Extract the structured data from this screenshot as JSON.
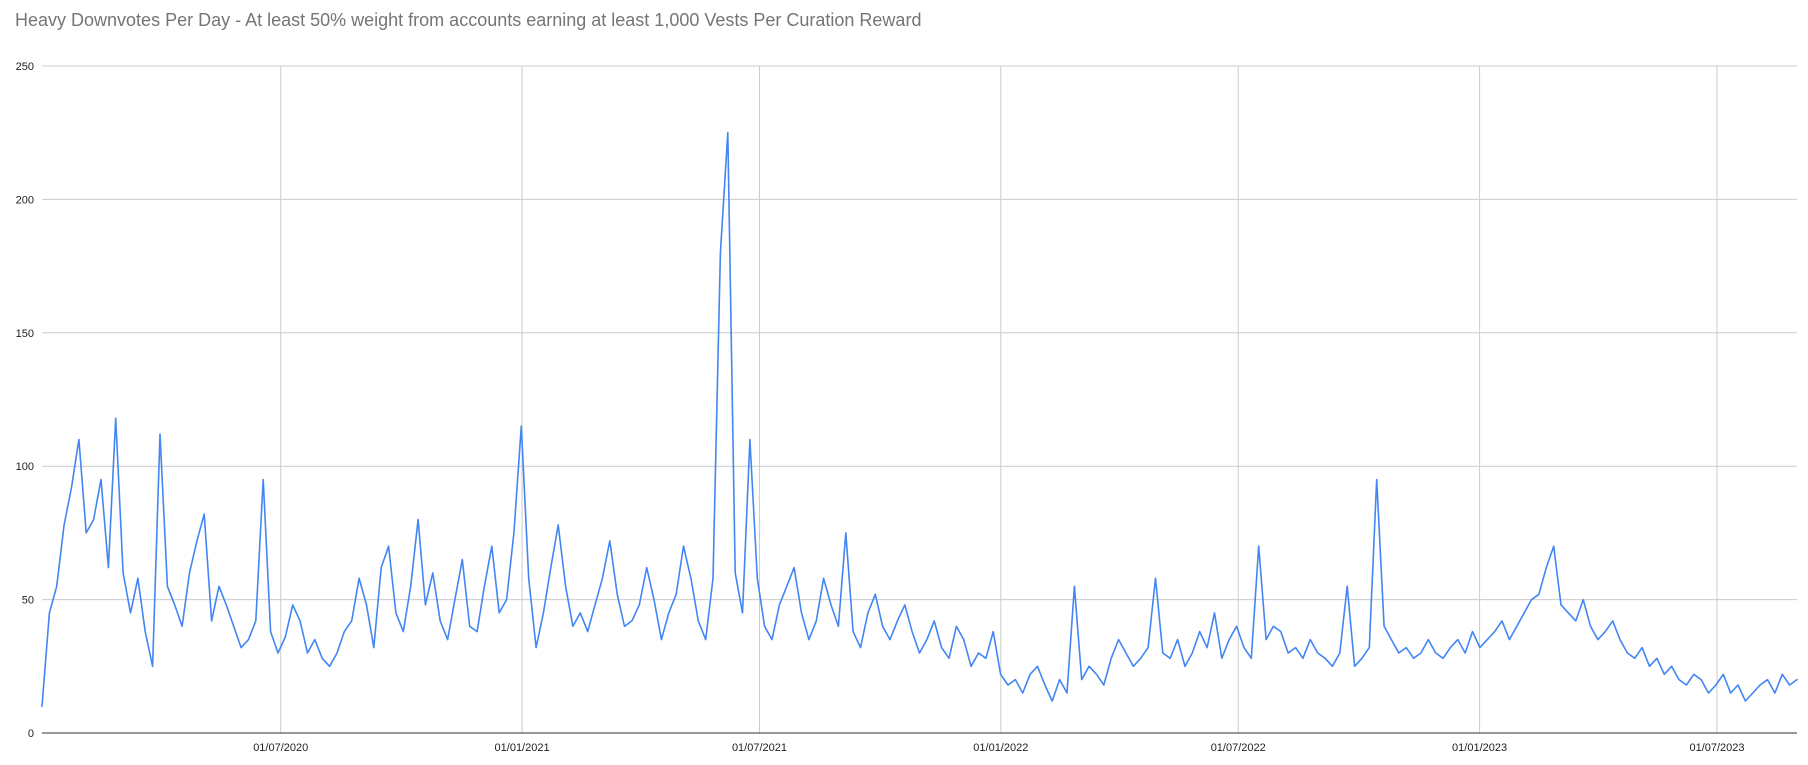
{
  "chart_data": {
    "type": "line",
    "title": "Heavy Downvotes Per Day - At least 50% weight from accounts earning at least 1,000 Vests Per Curation Reward",
    "xlabel": "",
    "ylabel": "",
    "x_range": [
      "01/01/2020",
      "31/08/2023"
    ],
    "ylim": [
      0,
      250
    ],
    "y_ticks": [
      0,
      50,
      100,
      150,
      200,
      250
    ],
    "x_ticks": [
      "01/07/2020",
      "01/01/2021",
      "01/07/2021",
      "01/01/2022",
      "01/07/2022",
      "01/01/2023",
      "01/07/2023"
    ],
    "grid": true,
    "legend": "none",
    "series_color": "#4285f4",
    "series": [
      {
        "x_start": "01/01/2020",
        "x_interval": "7 days",
        "values": [
          10,
          45,
          55,
          78,
          92,
          110,
          75,
          80,
          95,
          62,
          118,
          60,
          45,
          58,
          38,
          25,
          112,
          55,
          48,
          40,
          60,
          72,
          82,
          42,
          55,
          48,
          40,
          32,
          35,
          42,
          95,
          38,
          30,
          36,
          48,
          42,
          30,
          35,
          28,
          25,
          30,
          38,
          42,
          58,
          48,
          32,
          62,
          70,
          45,
          38,
          55,
          80,
          48,
          60,
          42,
          35,
          50,
          65,
          40,
          38,
          55,
          70,
          45,
          50,
          75,
          115,
          58,
          32,
          45,
          62,
          78,
          55,
          40,
          45,
          38,
          48,
          58,
          72,
          52,
          40,
          42,
          48,
          62,
          50,
          35,
          45,
          52,
          70,
          58,
          42,
          35,
          58,
          180,
          225,
          60,
          45,
          110,
          58,
          40,
          35,
          48,
          55,
          62,
          45,
          35,
          42,
          58,
          48,
          40,
          75,
          38,
          32,
          45,
          52,
          40,
          35,
          42,
          48,
          38,
          30,
          35,
          42,
          32,
          28,
          40,
          35,
          25,
          30,
          28,
          38,
          22,
          18,
          20,
          15,
          22,
          25,
          18,
          12,
          20,
          15,
          55,
          20,
          25,
          22,
          18,
          28,
          35,
          30,
          25,
          28,
          32,
          58,
          30,
          28,
          35,
          25,
          30,
          38,
          32,
          45,
          28,
          35,
          40,
          32,
          28,
          70,
          35,
          40,
          38,
          30,
          32,
          28,
          35,
          30,
          28,
          25,
          30,
          55,
          25,
          28,
          32,
          95,
          40,
          35,
          30,
          32,
          28,
          30,
          35,
          30,
          28,
          32,
          35,
          30,
          38,
          32,
          35,
          38,
          42,
          35,
          40,
          45,
          50,
          52,
          62,
          70,
          48,
          45,
          42,
          50,
          40,
          35,
          38,
          42,
          35,
          30,
          28,
          32,
          25,
          28,
          22,
          25,
          20,
          18,
          22,
          20,
          15,
          18,
          22,
          15,
          18,
          12,
          15,
          18,
          20,
          15,
          22,
          18,
          20
        ]
      }
    ]
  }
}
